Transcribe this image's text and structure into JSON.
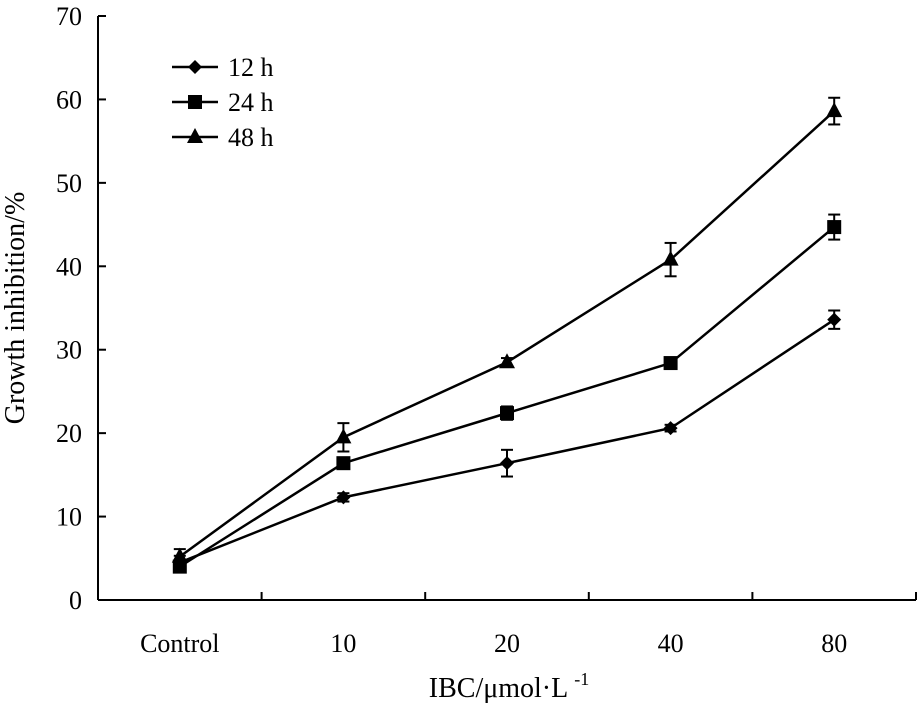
{
  "chart_data": {
    "type": "line",
    "title": "",
    "xlabel": "IBC/μmol·L",
    "xlabel_superscript": "-1",
    "ylabel": "Growth inhibition/%",
    "categories": [
      "Control",
      "10",
      "20",
      "40",
      "80"
    ],
    "ylim": [
      0,
      70
    ],
    "yticks": [
      0,
      10,
      20,
      30,
      40,
      50,
      60,
      70
    ],
    "grid": false,
    "legend_position": "top-left",
    "series": [
      {
        "name": "12 h",
        "marker": "diamond",
        "values": [
          4.5,
          12.3,
          16.4,
          20.6,
          33.6
        ],
        "errors": [
          0.8,
          0.5,
          1.6,
          0.4,
          1.1
        ]
      },
      {
        "name": "24 h",
        "marker": "square",
        "values": [
          4.0,
          16.4,
          22.4,
          28.4,
          44.7
        ],
        "errors": [
          0.7,
          0.6,
          0.8,
          0.5,
          1.5
        ]
      },
      {
        "name": "48 h",
        "marker": "triangle",
        "values": [
          5.2,
          19.5,
          28.5,
          40.8,
          58.6
        ],
        "errors": [
          0.9,
          1.7,
          0.5,
          2.0,
          1.6
        ]
      }
    ]
  }
}
